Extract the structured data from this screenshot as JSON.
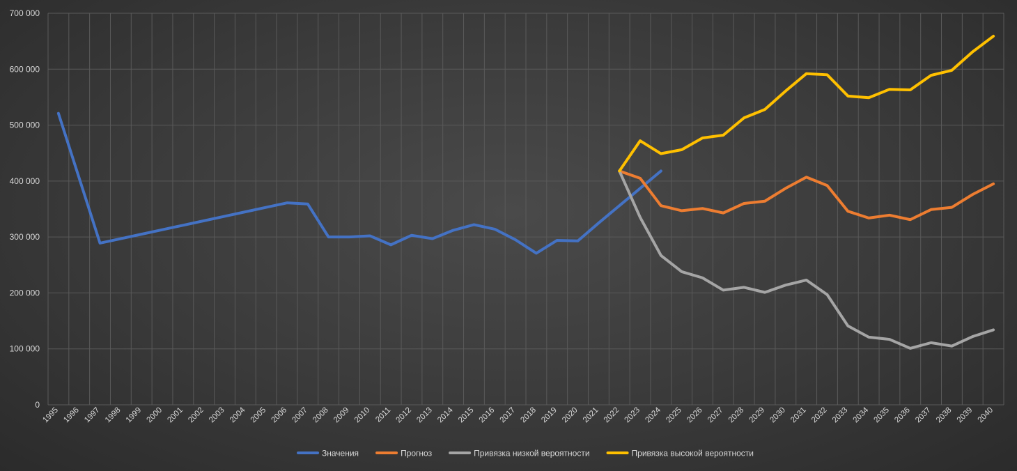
{
  "chart_data": {
    "type": "line",
    "title": "",
    "xlabel": "",
    "ylabel": "",
    "grid": true,
    "legend_position": "bottom",
    "ylim": [
      0,
      700000
    ],
    "yticks": [
      {
        "value": 0,
        "label": "0"
      },
      {
        "value": 100000,
        "label": "100 000"
      },
      {
        "value": 200000,
        "label": "200 000"
      },
      {
        "value": 300000,
        "label": "300 000"
      },
      {
        "value": 400000,
        "label": "400 000"
      },
      {
        "value": 500000,
        "label": "500 000"
      },
      {
        "value": 600000,
        "label": "600 000"
      },
      {
        "value": 700000,
        "label": "700 000"
      }
    ],
    "categories": [
      "1995",
      "1996",
      "1997",
      "1998",
      "1999",
      "2000",
      "2001",
      "2002",
      "2003",
      "2004",
      "2005",
      "2006",
      "2007",
      "2008",
      "2009",
      "2010",
      "2011",
      "2012",
      "2013",
      "2014",
      "2015",
      "2016",
      "2017",
      "2018",
      "2019",
      "2020",
      "2021",
      "2022",
      "2023",
      "2024",
      "2025",
      "2026",
      "2027",
      "2028",
      "2029",
      "2030",
      "2031",
      "2032",
      "2033",
      "2034",
      "2035",
      "2036",
      "2037",
      "2038",
      "2039",
      "2040"
    ],
    "series": [
      {
        "name": "Значения",
        "color": "#4472c4",
        "values": [
          521000,
          405000,
          289000,
          297000,
          305000,
          313000,
          321000,
          329000,
          337000,
          345000,
          353000,
          361000,
          359000,
          300000,
          300000,
          302000,
          286000,
          303000,
          297000,
          312000,
          322000,
          314000,
          295000,
          271000,
          294000,
          293000,
          325000,
          356000,
          387000,
          418000,
          null,
          null,
          null,
          null,
          null,
          null,
          null,
          null,
          null,
          null,
          null,
          null,
          null,
          null,
          null,
          null
        ]
      },
      {
        "name": "Прогноз",
        "color": "#ed7d31",
        "values": [
          null,
          null,
          null,
          null,
          null,
          null,
          null,
          null,
          null,
          null,
          null,
          null,
          null,
          null,
          null,
          null,
          null,
          null,
          null,
          null,
          null,
          null,
          null,
          null,
          null,
          null,
          null,
          418000,
          405000,
          356000,
          347000,
          351000,
          343000,
          360000,
          364000,
          387000,
          407000,
          392000,
          346000,
          334000,
          339000,
          331000,
          349000,
          353000,
          376000,
          395000
        ]
      },
      {
        "name": "Привязка низкой вероятности",
        "color": "#a5a5a5",
        "values": [
          null,
          null,
          null,
          null,
          null,
          null,
          null,
          null,
          null,
          null,
          null,
          null,
          null,
          null,
          null,
          null,
          null,
          null,
          null,
          null,
          null,
          null,
          null,
          null,
          null,
          null,
          null,
          418000,
          335000,
          267000,
          238000,
          227000,
          205000,
          210000,
          201000,
          214000,
          223000,
          197000,
          141000,
          121000,
          117000,
          101000,
          111000,
          105000,
          122000,
          134000
        ]
      },
      {
        "name": "Привязка высокой вероятности",
        "color": "#ffc000",
        "values": [
          null,
          null,
          null,
          null,
          null,
          null,
          null,
          null,
          null,
          null,
          null,
          null,
          null,
          null,
          null,
          null,
          null,
          null,
          null,
          null,
          null,
          null,
          null,
          null,
          null,
          null,
          null,
          418000,
          472000,
          449000,
          456000,
          477000,
          482000,
          513000,
          528000,
          561000,
          592000,
          590000,
          552000,
          549000,
          564000,
          563000,
          589000,
          598000,
          631000,
          659000
        ]
      }
    ]
  }
}
